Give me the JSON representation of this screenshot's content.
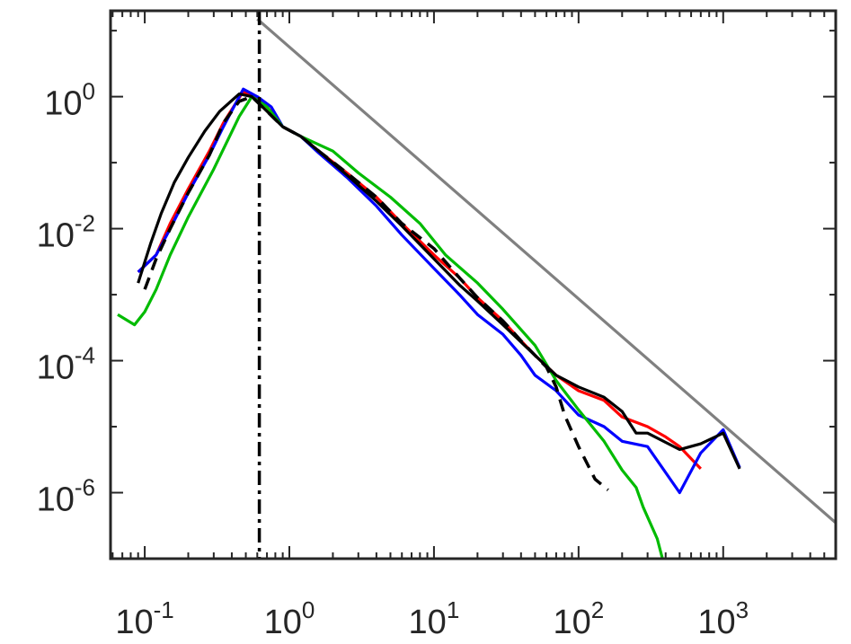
{
  "chart_data": {
    "type": "line",
    "title": "",
    "xlabel": "",
    "ylabel": "",
    "x_scale": "log",
    "y_scale": "log",
    "xlim": [
      0.058,
      6000
    ],
    "ylim": [
      1e-07,
      20
    ],
    "grid": false,
    "legend": "none",
    "x_ticks": [
      {
        "value": 0.1,
        "base": "10",
        "exp": "-1"
      },
      {
        "value": 1,
        "base": "10",
        "exp": "0"
      },
      {
        "value": 10,
        "base": "10",
        "exp": "1"
      },
      {
        "value": 100,
        "base": "10",
        "exp": "2"
      },
      {
        "value": 1000,
        "base": "10",
        "exp": "3"
      }
    ],
    "y_ticks": [
      {
        "value": 1,
        "base": "10",
        "exp": "0"
      },
      {
        "value": 0.01,
        "base": "10",
        "exp": "-2"
      },
      {
        "value": 0.0001,
        "base": "10",
        "exp": "-4"
      },
      {
        "value": 1e-06,
        "base": "10",
        "exp": "-6"
      }
    ],
    "vertical_reference": {
      "x": 0.62,
      "style": "dash-dot",
      "color": "#000000"
    },
    "series": [
      {
        "color": "#808080",
        "style": "solid",
        "x": [
          0.6,
          6000
        ],
        "y": [
          15,
          3.5e-07
        ]
      },
      {
        "color": "#ff0000",
        "style": "solid",
        "x": [
          0.09,
          0.12,
          0.15,
          0.2,
          0.28,
          0.35,
          0.48,
          0.6,
          0.75,
          0.9,
          1.2,
          1.6,
          2.5,
          4,
          6,
          10,
          15,
          20,
          30,
          40,
          50,
          70,
          100,
          150,
          200,
          300,
          400,
          500,
          700
        ],
        "y": [
          0.0022,
          0.004,
          0.012,
          0.04,
          0.15,
          0.4,
          1.2,
          0.95,
          0.6,
          0.35,
          0.25,
          0.15,
          0.07,
          0.03,
          0.012,
          0.004,
          0.0018,
          0.0009,
          0.0004,
          0.0002,
          0.00012,
          6e-05,
          3.5e-05,
          2.5e-05,
          1.4e-05,
          1e-05,
          7e-06,
          5e-06,
          2.3e-06
        ]
      },
      {
        "color": "#0000ff",
        "style": "solid",
        "x": [
          0.09,
          0.12,
          0.15,
          0.2,
          0.28,
          0.35,
          0.48,
          0.6,
          0.75,
          0.9,
          1.2,
          1.6,
          2.5,
          4,
          6,
          10,
          15,
          20,
          30,
          40,
          50,
          70,
          100,
          150,
          200,
          300,
          500,
          700,
          1000,
          1300
        ],
        "y": [
          0.0022,
          0.004,
          0.01,
          0.035,
          0.13,
          0.35,
          1.3,
          1.0,
          0.7,
          0.35,
          0.25,
          0.14,
          0.06,
          0.022,
          0.008,
          0.0025,
          0.001,
          0.0005,
          0.00025,
          0.00012,
          6e-05,
          3.5e-05,
          1.5e-05,
          1e-05,
          6e-06,
          5e-06,
          1e-06,
          4e-06,
          9e-06,
          2.4e-06
        ]
      },
      {
        "color": "#00bb00",
        "style": "solid",
        "x": [
          0.065,
          0.085,
          0.1,
          0.12,
          0.15,
          0.2,
          0.3,
          0.45,
          0.55,
          0.7,
          0.9,
          1.2,
          2,
          3,
          5,
          8,
          12,
          20,
          30,
          50,
          70,
          100,
          150,
          200,
          250,
          280,
          350,
          380
        ],
        "y": [
          0.0005,
          0.00035,
          0.00055,
          0.0012,
          0.004,
          0.015,
          0.08,
          0.5,
          1.0,
          0.7,
          0.35,
          0.25,
          0.15,
          0.07,
          0.03,
          0.012,
          0.004,
          0.0015,
          0.0006,
          0.00017,
          5e-05,
          1.8e-05,
          6e-06,
          2.2e-06,
          1.2e-06,
          6e-07,
          2e-07,
          1e-07
        ]
      },
      {
        "color": "#000000",
        "style": "solid",
        "x": [
          0.09,
          0.11,
          0.13,
          0.16,
          0.2,
          0.26,
          0.33,
          0.45,
          0.55,
          0.7,
          0.9,
          1.2,
          1.6,
          2.5,
          4,
          6,
          10,
          15,
          20,
          30,
          50,
          70,
          100,
          150,
          200,
          250,
          300,
          500,
          700,
          1000,
          1300
        ],
        "y": [
          0.0015,
          0.006,
          0.017,
          0.05,
          0.12,
          0.3,
          0.6,
          1.1,
          1.0,
          0.6,
          0.35,
          0.25,
          0.15,
          0.065,
          0.026,
          0.011,
          0.0035,
          0.0014,
          0.0008,
          0.00035,
          0.00012,
          6e-05,
          4e-05,
          2.8e-05,
          1.7e-05,
          8e-06,
          8e-06,
          4.5e-06,
          5.5e-06,
          8e-06,
          2.3e-06
        ]
      },
      {
        "color": "#000000",
        "style": "dashed",
        "x": [
          0.1,
          0.12,
          0.15,
          0.2,
          0.28,
          0.35,
          0.45,
          0.55,
          0.7,
          0.9,
          1.2,
          1.6,
          2.5,
          4,
          6,
          10,
          15,
          20,
          30,
          40,
          50,
          60,
          70,
          80,
          100,
          130,
          160
        ],
        "y": [
          0.0012,
          0.0035,
          0.01,
          0.035,
          0.13,
          0.4,
          0.85,
          1.0,
          0.6,
          0.35,
          0.25,
          0.15,
          0.07,
          0.03,
          0.012,
          0.005,
          0.0018,
          0.0009,
          0.0004,
          0.0002,
          0.00012,
          8e-05,
          4e-05,
          1.5e-05,
          5e-06,
          1.6e-06,
          1.1e-06
        ]
      }
    ]
  }
}
